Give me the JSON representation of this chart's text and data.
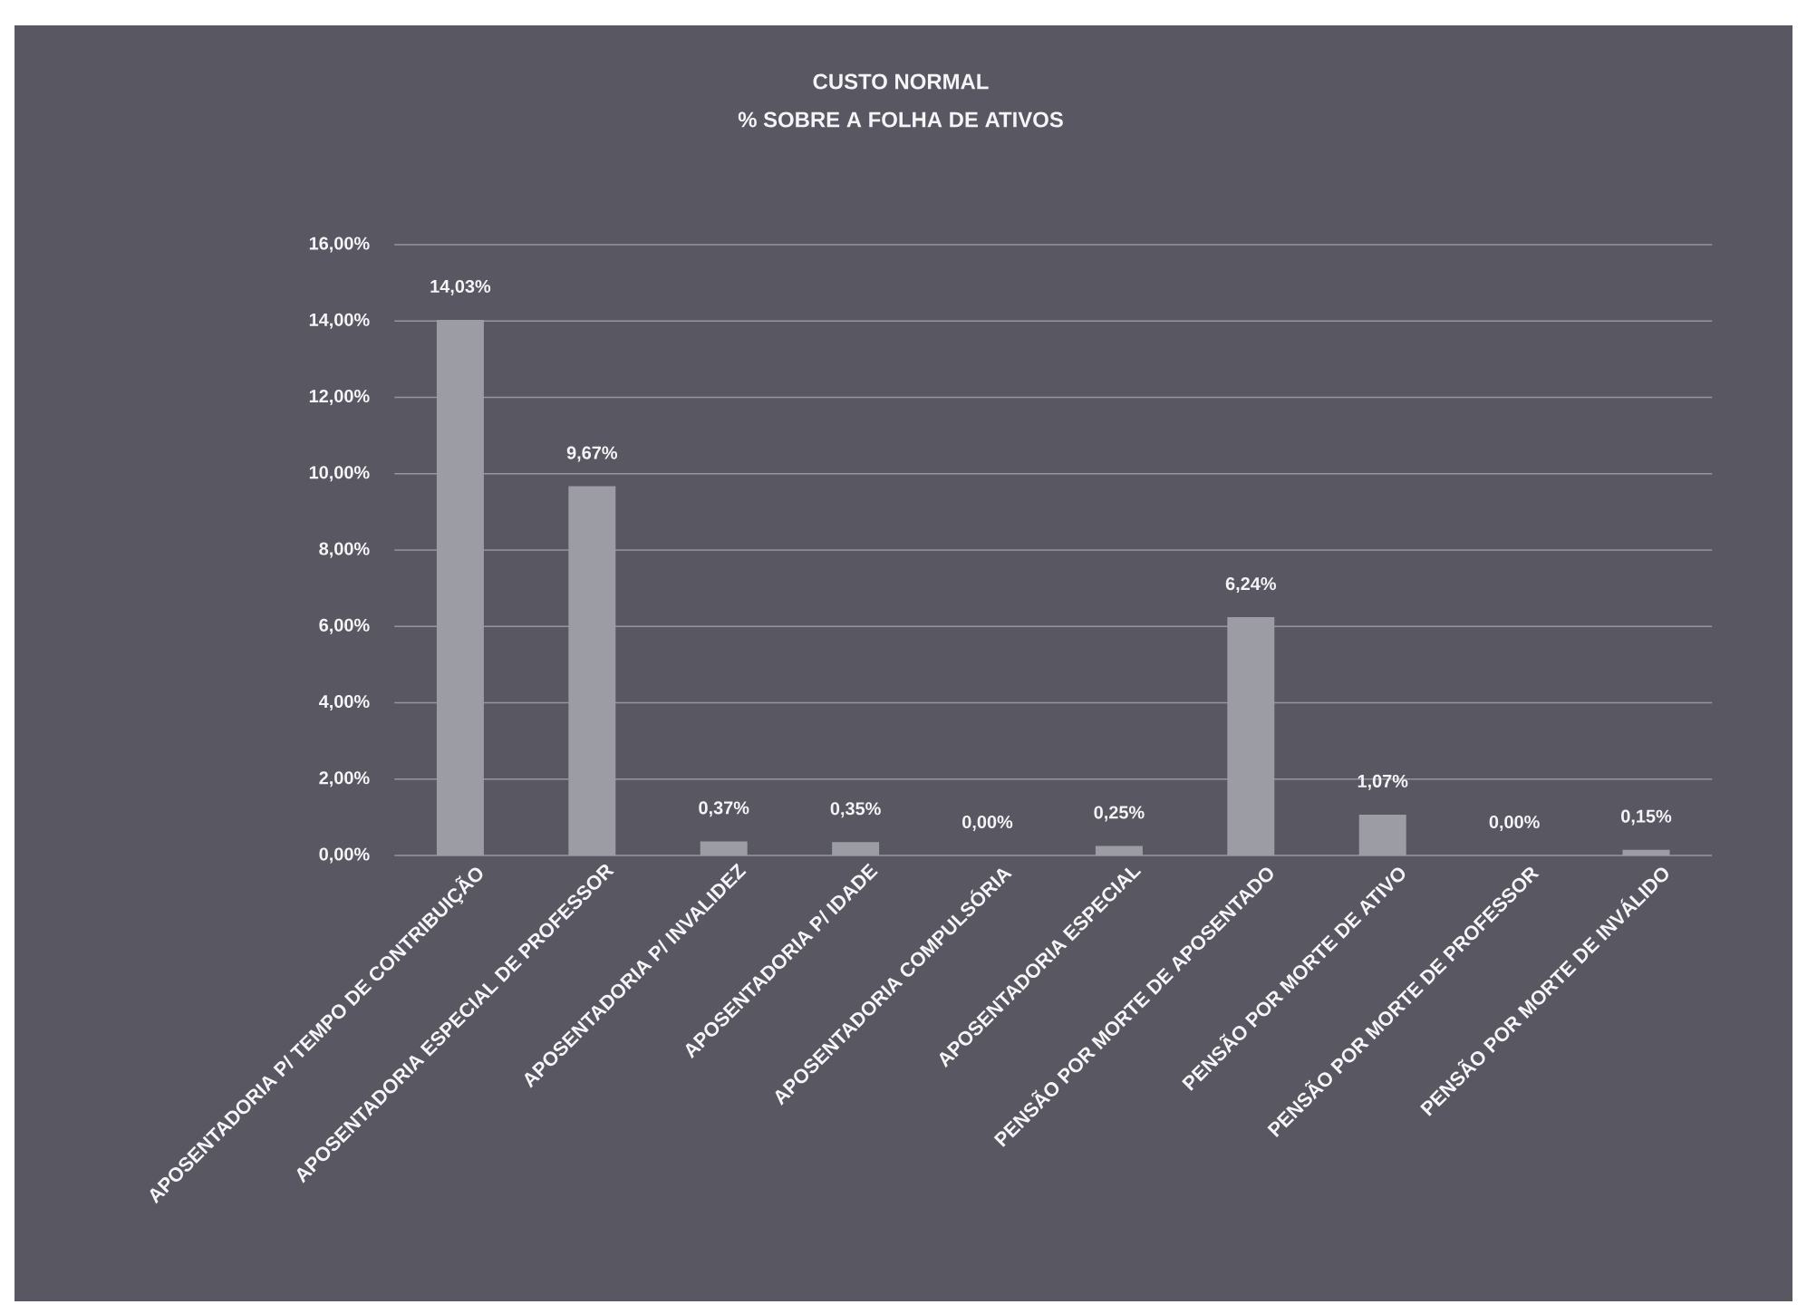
{
  "chart_data": {
    "type": "bar",
    "title": "CUSTO NORMAL",
    "subtitle": "% SOBRE A FOLHA DE ATIVOS",
    "categories": [
      "APOSENTADORIA P/ TEMPO DE CONTRIBUIÇÃO",
      "APOSENTADORIA ESPECIAL DE PROFESSOR",
      "APOSENTADORIA P/ INVALIDEZ",
      "APOSENTADORIA P/ IDADE",
      "APOSENTADORIA COMPULSÓRIA",
      "APOSENTADORIA ESPECIAL",
      "PENSÃO POR MORTE DE APOSENTADO",
      "PENSÃO POR MORTE DE ATIVO",
      "PENSÃO POR MORTE DE PROFESSOR",
      "PENSÃO POR MORTE DE INVÁLIDO"
    ],
    "values": [
      14.03,
      9.67,
      0.37,
      0.35,
      0,
      0.25,
      6.24,
      1.07,
      0,
      0.15
    ],
    "value_labels": [
      "14,03%",
      "9,67%",
      "0,37%",
      "0,35%",
      "0,00%",
      "0,25%",
      "6,24%",
      "1,07%",
      "0,00%",
      "0,15%"
    ],
    "color": "#9c9ca4",
    "ylim": [
      0,
      16
    ],
    "yticks": [
      {
        "value": 0,
        "label": "0,00%"
      },
      {
        "value": 2,
        "label": "2,00%"
      },
      {
        "value": 4,
        "label": "4,00%"
      },
      {
        "value": 6,
        "label": "6,00%"
      },
      {
        "value": 8,
        "label": "8,00%"
      },
      {
        "value": 10,
        "label": "10,00%"
      },
      {
        "value": 12,
        "label": "12,00%"
      },
      {
        "value": 14,
        "label": "14,00%"
      },
      {
        "value": 16,
        "label": "16,00%"
      }
    ],
    "grid": "y"
  }
}
